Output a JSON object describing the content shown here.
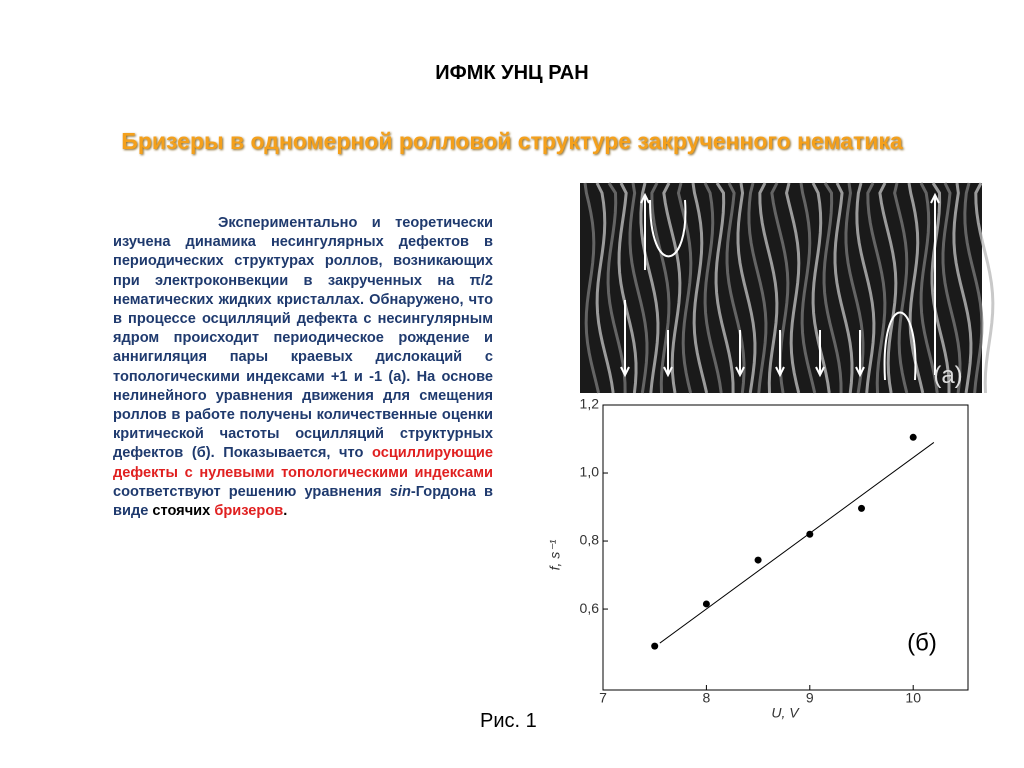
{
  "header": {
    "org": "ИФМК УНЦ РАН",
    "title": "Бризеры в одномерной ролловой структуре  закрученного нематика"
  },
  "paragraph": {
    "segments": [
      "Экспериментально и теоретически изучена динамика несингулярных дефектов в периодических структурах роллов, возникающих при электроконвекции в закрученных на π/2 нематических жидких кристаллах. Обнаружено, что в процессе осцилляций дефекта с несингулярным ядром происходит периодическое рождение и аннигиляция пары краевых дислокаций с топологическими индексами +1 и -1 (а). На основе нелинейного уравнения движения для смещения роллов в работе получены количественные оценки критической частоты осцилляций структурных дефектов (б). Показывается, что ",
      "осциллирующие дефекты с нулевыми топологическими индексами",
      " соответствуют решению уравнения ",
      "sin",
      "-Гордона в виде ",
      "стоячих",
      " ",
      "бризеров",
      "."
    ]
  },
  "image": {
    "label": "(а)"
  },
  "chart_data": {
    "type": "scatter",
    "annotation": "(б)",
    "x_label": "U, V",
    "y_label": "f, s⁻¹",
    "x": [
      7.5,
      8,
      8.5,
      9,
      9.5,
      10
    ],
    "values": [
      0.491,
      0.615,
      0.744,
      0.82,
      0.896,
      1.105
    ],
    "color": "#000000",
    "fit_line": {
      "x": [
        7.55,
        10.2
      ],
      "values": [
        0.5,
        1.09
      ],
      "color": "#000000"
    },
    "xlim": [
      7,
      10.53
    ],
    "xticks": [
      7,
      8,
      9,
      10
    ],
    "ylim": [
      0.362,
      1.2
    ],
    "yticks": [
      {
        "value": 0.6,
        "label": "0,6"
      },
      {
        "value": 0.8,
        "label": "0,8"
      },
      {
        "value": 1.0,
        "label": "1,0"
      },
      {
        "value": 1.2,
        "label": "1,2"
      }
    ]
  },
  "caption": "Рис. 1"
}
